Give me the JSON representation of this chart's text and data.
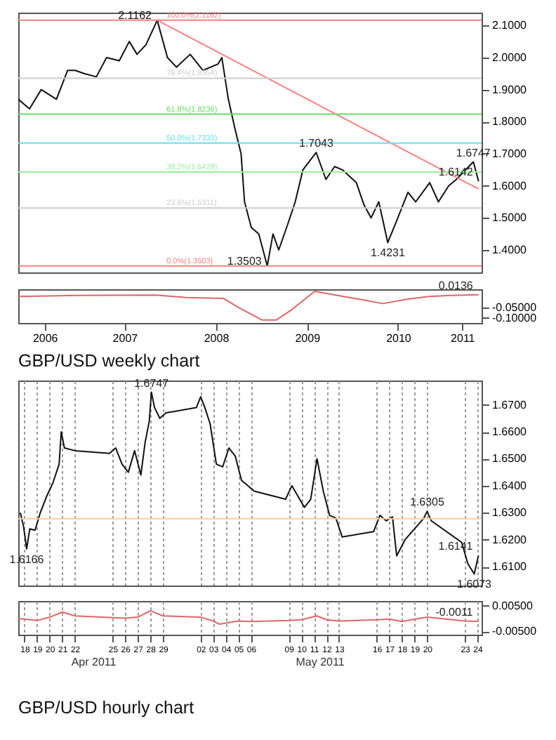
{
  "chart_data": [
    {
      "type": "line",
      "xlim": [
        "2006-05-01",
        "2011-06-01"
      ],
      "ylim": [
        1.33,
        2.14
      ],
      "xticks": [
        {
          "value": "2006-08-15",
          "label": null
        },
        {
          "value": "2007-07-01",
          "label": null
        },
        {
          "value": "2008-07-01",
          "label": null
        },
        {
          "value": "2009-07-01",
          "label": null
        },
        {
          "value": "2010-07-01",
          "label": null
        },
        {
          "value": "2011-03-15",
          "label": null
        }
      ],
      "yticks": [
        {
          "value": 1.4,
          "label": "1.4000"
        },
        {
          "value": 1.5,
          "label": "1.5000"
        },
        {
          "value": 1.6,
          "label": "1.6000"
        },
        {
          "value": 1.7,
          "label": "1.7000"
        },
        {
          "value": 1.8,
          "label": "1.8000"
        },
        {
          "value": 1.9,
          "label": "1.9000"
        },
        {
          "value": 2.0,
          "label": "2.0000"
        },
        {
          "value": 2.1,
          "label": "2.1000"
        }
      ],
      "tick_labels": "y",
      "series": [
        {
          "color": "#111111",
          "x": [
            "2006-05-01",
            "2006-06-15",
            "2006-08-01",
            "2006-10-01",
            "2006-11-15",
            "2006-12-15",
            "2007-01-20",
            "2007-03-10",
            "2007-04-20",
            "2007-06-10",
            "2007-07-20",
            "2007-08-20",
            "2007-09-25",
            "2007-11-09",
            "2007-12-20",
            "2008-01-25",
            "2008-03-20",
            "2008-05-10",
            "2008-07-10",
            "2008-07-25",
            "2008-08-20",
            "2008-09-15",
            "2008-10-10",
            "2008-10-24",
            "2008-11-20",
            "2008-12-20",
            "2009-01-23",
            "2009-02-15",
            "2009-03-10",
            "2009-04-15",
            "2009-05-15",
            "2009-06-15",
            "2009-08-07",
            "2009-09-15",
            "2009-10-20",
            "2009-11-20",
            "2010-01-15",
            "2010-02-15",
            "2010-03-15",
            "2010-04-15",
            "2010-05-21",
            "2010-06-20",
            "2010-08-10",
            "2010-09-10",
            "2010-11-05",
            "2010-12-10",
            "2011-01-20",
            "2011-02-20",
            "2011-04-29",
            "2011-05-20"
          ],
          "values": [
            1.87,
            1.84,
            1.9,
            1.87,
            1.96,
            1.96,
            1.95,
            1.94,
            2.0,
            1.99,
            2.05,
            2.01,
            2.04,
            2.1162,
            2.0,
            1.97,
            2.01,
            1.96,
            1.98,
            2.0,
            1.87,
            1.78,
            1.7,
            1.55,
            1.47,
            1.45,
            1.3503,
            1.45,
            1.4,
            1.48,
            1.55,
            1.65,
            1.7043,
            1.62,
            1.66,
            1.65,
            1.61,
            1.54,
            1.5,
            1.55,
            1.4231,
            1.48,
            1.58,
            1.55,
            1.61,
            1.55,
            1.6,
            1.62,
            1.6747,
            1.6142
          ]
        },
        {
          "type": "line",
          "color": "#ff8080",
          "x": [
            "2007-11-09",
            "2011-05-20"
          ],
          "values": [
            2.1162,
            1.59
          ]
        }
      ],
      "ref_lines": [
        {
          "axis": "y",
          "value": 2.1162,
          "label": "100.0%(2.1162)",
          "color": "#ff8080"
        },
        {
          "axis": "y",
          "value": 1.9354,
          "label": "76.4%(1.9354)",
          "color": "#cccccc"
        },
        {
          "axis": "y",
          "value": 1.8236,
          "label": "61.8%(1.8236)",
          "color": "#66dd66"
        },
        {
          "axis": "y",
          "value": 1.7333,
          "label": "50.0%(1.7333)",
          "color": "#66e0f0"
        },
        {
          "axis": "y",
          "value": 1.6429,
          "label": "38.2%(1.6429)",
          "color": "#99ee99"
        },
        {
          "axis": "y",
          "value": 1.5311,
          "label": "23.6%(1.5311)",
          "color": "#cccccc"
        },
        {
          "axis": "y",
          "value": 1.3503,
          "label": "0.0%(1.3503)",
          "color": "#ff8080"
        }
      ],
      "annotations": [
        {
          "text": "2.1162",
          "x": "2007-11-09",
          "y": 2.1162
        },
        {
          "text": "1.7043",
          "x": "2009-08-07",
          "y": 1.7043
        },
        {
          "text": "1.3503",
          "x": "2009-01-23",
          "y": 1.3503
        },
        {
          "text": "1.4231",
          "x": "2010-05-21",
          "y": 1.4231
        },
        {
          "text": "1.6747",
          "x": "2011-04-29",
          "y": 1.6747
        },
        {
          "text": "1.6142",
          "x": "2011-05-20",
          "y": 1.6142
        }
      ]
    },
    {
      "type": "line",
      "xlim": [
        "2006-05-01",
        "2011-06-01"
      ],
      "ylim": [
        -0.125,
        0.04
      ],
      "xticks": [
        {
          "value": "2006-08-15",
          "label": "2006"
        },
        {
          "value": "2007-07-01",
          "label": "2007"
        },
        {
          "value": "2008-07-01",
          "label": "2008"
        },
        {
          "value": "2009-07-01",
          "label": "2009"
        },
        {
          "value": "2010-07-01",
          "label": "2010"
        },
        {
          "value": "2011-03-15",
          "label": "2011"
        }
      ],
      "yticks": [
        {
          "value": -0.05,
          "label": "-0.05000"
        },
        {
          "value": -0.1,
          "label": "-0.10000"
        }
      ],
      "series": [
        {
          "color": "#e06666",
          "x": [
            "2006-05-01",
            "2007-01-01",
            "2007-11-01",
            "2008-03-01",
            "2008-08-01",
            "2008-10-01",
            "2009-01-01",
            "2009-03-01",
            "2009-05-01",
            "2009-08-01",
            "2009-11-01",
            "2010-02-01",
            "2010-05-01",
            "2010-08-01",
            "2010-11-01",
            "2011-02-01",
            "2011-05-20"
          ],
          "values": [
            0.005,
            0.01,
            0.012,
            0.0,
            -0.005,
            -0.05,
            -0.11,
            -0.11,
            -0.06,
            0.03,
            0.01,
            -0.01,
            -0.03,
            -0.01,
            0.005,
            0.01,
            0.0136
          ]
        }
      ],
      "annotations": [
        {
          "text": "0.0136",
          "x": "2011-05-20",
          "y": 0.0136
        },
        "GBP/USD weekly chart"
      ]
    },
    {
      "type": "line",
      "xlim": [
        "2011-04-18T00:00",
        "2011-05-24T20:00"
      ],
      "ylim": [
        1.603,
        1.679
      ],
      "xticks": [
        {
          "value": "2011-04-18T12:00",
          "label": null
        },
        {
          "value": "2011-04-19T12:00",
          "label": null
        },
        {
          "value": "2011-04-20T12:00",
          "label": null
        },
        {
          "value": "2011-04-21T12:00",
          "label": null
        },
        {
          "value": "2011-04-22T12:00",
          "label": null
        },
        {
          "value": "2011-04-25T12:00",
          "label": null
        },
        {
          "value": "2011-04-26T12:00",
          "label": null
        },
        {
          "value": "2011-04-27T12:00",
          "label": null
        },
        {
          "value": "2011-04-28T12:00",
          "label": null
        },
        {
          "value": "2011-04-29T12:00",
          "label": null
        },
        {
          "value": "2011-05-02T12:00",
          "label": null
        },
        {
          "value": "2011-05-03T12:00",
          "label": null
        },
        {
          "value": "2011-05-04T12:00",
          "label": null
        },
        {
          "value": "2011-05-05T12:00",
          "label": null
        },
        {
          "value": "2011-05-06T12:00",
          "label": null
        },
        {
          "value": "2011-05-09T12:00",
          "label": null
        },
        {
          "value": "2011-05-10T12:00",
          "label": null
        },
        {
          "value": "2011-05-11T12:00",
          "label": null
        },
        {
          "value": "2011-05-12T12:00",
          "label": null
        },
        {
          "value": "2011-05-13T12:00",
          "label": null
        },
        {
          "value": "2011-05-16T12:00",
          "label": null
        },
        {
          "value": "2011-05-17T12:00",
          "label": null
        },
        {
          "value": "2011-05-18T12:00",
          "label": null
        },
        {
          "value": "2011-05-19T12:00",
          "label": null
        },
        {
          "value": "2011-05-20T12:00",
          "label": null
        },
        {
          "value": "2011-05-23T12:00",
          "label": null
        },
        {
          "value": "2011-05-24T12:00",
          "label": null
        }
      ],
      "grid": "x",
      "yticks": [
        {
          "value": 1.61,
          "label": "1.6100"
        },
        {
          "value": 1.62,
          "label": "1.6200"
        },
        {
          "value": 1.63,
          "label": "1.6300"
        },
        {
          "value": 1.64,
          "label": "1.6400"
        },
        {
          "value": 1.65,
          "label": "1.6500"
        },
        {
          "value": 1.66,
          "label": "1.6600"
        },
        {
          "value": 1.67,
          "label": "1.6700"
        }
      ],
      "tick_labels": "y",
      "series": [
        {
          "color": "#111111",
          "x": [
            "2011-04-18T04:00",
            "2011-04-18T10:00",
            "2011-04-18T16:00",
            "2011-04-18T22:00",
            "2011-04-19T08:00",
            "2011-04-19T18:00",
            "2011-04-20T06:00",
            "2011-04-20T18:00",
            "2011-04-21T06:00",
            "2011-04-21T10:00",
            "2011-04-21T16:00",
            "2011-04-22T12:00",
            "2011-04-25T06:00",
            "2011-04-25T18:00",
            "2011-04-26T06:00",
            "2011-04-26T18:00",
            "2011-04-27T06:00",
            "2011-04-27T18:00",
            "2011-04-28T02:00",
            "2011-04-28T10:00",
            "2011-04-28T14:00",
            "2011-04-28T20:00",
            "2011-04-29T06:00",
            "2011-04-29T18:00",
            "2011-05-02T04:00",
            "2011-05-02T12:00",
            "2011-05-02T20:00",
            "2011-05-03T06:00",
            "2011-05-03T18:00",
            "2011-05-04T06:00",
            "2011-05-04T18:00",
            "2011-05-05T06:00",
            "2011-05-05T18:00",
            "2011-05-06T06:00",
            "2011-05-06T18:00",
            "2011-05-09T06:00",
            "2011-05-09T18:00",
            "2011-05-10T06:00",
            "2011-05-10T18:00",
            "2011-05-11T06:00",
            "2011-05-11T18:00",
            "2011-05-12T06:00",
            "2011-05-12T18:00",
            "2011-05-13T06:00",
            "2011-05-13T18:00",
            "2011-05-16T06:00",
            "2011-05-16T18:00",
            "2011-05-17T06:00",
            "2011-05-17T18:00",
            "2011-05-18T02:00",
            "2011-05-18T18:00",
            "2011-05-19T12:00",
            "2011-05-20T06:00",
            "2011-05-20T12:00",
            "2011-05-20T20:00",
            "2011-05-23T06:00",
            "2011-05-23T18:00",
            "2011-05-24T06:00",
            "2011-05-24T14:00"
          ],
          "values": [
            1.63,
            1.625,
            1.6166,
            1.624,
            1.6235,
            1.63,
            1.636,
            1.641,
            1.648,
            1.66,
            1.654,
            1.653,
            1.652,
            1.654,
            1.648,
            1.645,
            1.653,
            1.644,
            1.656,
            1.664,
            1.6747,
            1.669,
            1.665,
            1.667,
            1.669,
            1.673,
            1.669,
            1.663,
            1.648,
            1.647,
            1.654,
            1.651,
            1.642,
            1.64,
            1.638,
            1.635,
            1.64,
            1.636,
            1.632,
            1.635,
            1.65,
            1.638,
            1.629,
            1.628,
            1.621,
            1.623,
            1.629,
            1.627,
            1.6285,
            1.614,
            1.62,
            1.624,
            1.628,
            1.6305,
            1.627,
            1.619,
            1.611,
            1.6073,
            1.6141
          ]
        }
      ],
      "ref_lines": [
        {
          "axis": "y",
          "value": 1.6278,
          "color": "#ffcc99"
        }
      ],
      "annotations": [
        {
          "text": "1.6747",
          "x": "2011-04-28T14:00",
          "y": 1.6747
        },
        {
          "text": "1.6166",
          "x": "2011-04-18T16:00",
          "y": 1.6166
        },
        {
          "text": "1.6305",
          "x": "2011-05-20T12:00",
          "y": 1.6305
        },
        {
          "text": "1.6073",
          "x": "2011-05-24T06:00",
          "y": 1.6073
        },
        {
          "text": "1.6141",
          "x": "2011-05-24T14:00",
          "y": 1.6141
        }
      ]
    },
    {
      "type": "line",
      "xlim": [
        "2011-04-18T00:00",
        "2011-05-24T20:00"
      ],
      "ylim": [
        -0.0063,
        0.0068
      ],
      "grid": "x",
      "xticks": [
        {
          "value": "2011-04-18T12:00",
          "label": "18"
        },
        {
          "value": "2011-04-19T12:00",
          "label": "19"
        },
        {
          "value": "2011-04-20T12:00",
          "label": "20"
        },
        {
          "value": "2011-04-21T12:00",
          "label": "21"
        },
        {
          "value": "2011-04-22T12:00",
          "label": "22"
        },
        {
          "value": "2011-04-25T12:00",
          "label": "25"
        },
        {
          "value": "2011-04-26T12:00",
          "label": "26"
        },
        {
          "value": "2011-04-27T12:00",
          "label": "27"
        },
        {
          "value": "2011-04-28T12:00",
          "label": "28"
        },
        {
          "value": "2011-04-29T12:00",
          "label": "29"
        },
        {
          "value": "2011-05-02T12:00",
          "label": "02"
        },
        {
          "value": "2011-05-03T12:00",
          "label": "03"
        },
        {
          "value": "2011-05-04T12:00",
          "label": "04"
        },
        {
          "value": "2011-05-05T12:00",
          "label": "05"
        },
        {
          "value": "2011-05-06T12:00",
          "label": "06"
        },
        {
          "value": "2011-05-09T12:00",
          "label": "09"
        },
        {
          "value": "2011-05-10T12:00",
          "label": "10"
        },
        {
          "value": "2011-05-11T12:00",
          "label": "11"
        },
        {
          "value": "2011-05-12T12:00",
          "label": "12"
        },
        {
          "value": "2011-05-13T12:00",
          "label": "13"
        },
        {
          "value": "2011-05-16T12:00",
          "label": "16"
        },
        {
          "value": "2011-05-17T12:00",
          "label": "17"
        },
        {
          "value": "2011-05-18T12:00",
          "label": "18"
        },
        {
          "value": "2011-05-19T12:00",
          "label": "19"
        },
        {
          "value": "2011-05-20T12:00",
          "label": "20"
        },
        {
          "value": "2011-05-23T12:00",
          "label": "23"
        },
        {
          "value": "2011-05-24T12:00",
          "label": "24"
        }
      ],
      "x2lim": [
        "2011-04-18T00:00",
        "2011-05-24T20:00"
      ],
      "x2ticks": [
        {
          "value": "2011-04-24T00:00",
          "label": "Apr 2011"
        },
        {
          "value": "2011-05-12T00:00",
          "label": "May 2011"
        }
      ],
      "yticks": [
        {
          "value": 0.005,
          "label": "0.00500"
        },
        {
          "value": -0.005,
          "label": "-0.00500"
        }
      ],
      "series": [
        {
          "color": "#e06666",
          "x": [
            "2011-04-18T00:00",
            "2011-04-19T12:00",
            "2011-04-20T12:00",
            "2011-04-21T12:00",
            "2011-04-22T12:00",
            "2011-04-26T12:00",
            "2011-04-27T12:00",
            "2011-04-28T12:00",
            "2011-04-29T12:00",
            "2011-05-02T12:00",
            "2011-05-03T12:00",
            "2011-05-04T00:00",
            "2011-05-05T12:00",
            "2011-05-06T12:00",
            "2011-05-09T12:00",
            "2011-05-10T12:00",
            "2011-05-11T18:00",
            "2011-05-12T12:00",
            "2011-05-13T12:00",
            "2011-05-16T12:00",
            "2011-05-17T12:00",
            "2011-05-18T12:00",
            "2011-05-19T12:00",
            "2011-05-20T12:00",
            "2011-05-23T12:00",
            "2011-05-24T14:00"
          ],
          "values": [
            0.0,
            -0.0008,
            0.0005,
            0.0025,
            0.001,
            0.0001,
            0.0005,
            0.003,
            0.001,
            0.0005,
            -0.001,
            -0.0022,
            -0.001,
            -0.0012,
            -0.0008,
            -0.0005,
            0.001,
            -0.0005,
            -0.001,
            -0.0005,
            -0.0002,
            -0.0012,
            -0.0003,
            0.0005,
            -0.001,
            -0.0011
          ]
        }
      ],
      "annotations": [
        {
          "text": "-0.0011",
          "x": "2011-05-24T14:00",
          "y": -0.0011
        },
        "GBP/USD hourly chart"
      ]
    }
  ]
}
